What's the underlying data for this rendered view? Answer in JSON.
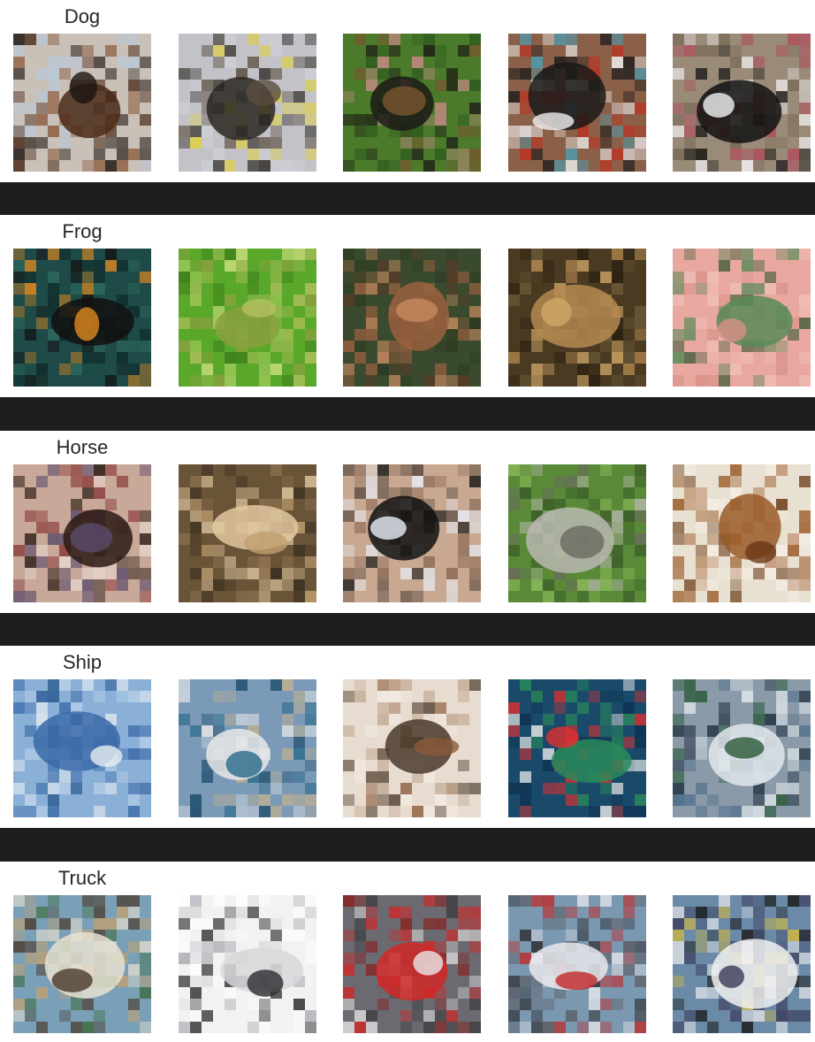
{
  "rows": [
    {
      "label": "Dog",
      "tiles": [
        {
          "name": "dog-1-rottweiler-closeup",
          "bg": "#c9c0b8",
          "colors": [
            "#4a2a18",
            "#1c1410",
            "#8a5a3a",
            "#b8c8d8"
          ]
        },
        {
          "name": "dog-2-dark-dog-standing",
          "bg": "#c2c2c8",
          "colors": [
            "#2a2620",
            "#5a4e40",
            "#d0d0d8",
            "#e0d040"
          ]
        },
        {
          "name": "dog-3-black-tan-on-grass",
          "bg": "#4a7a2a",
          "colors": [
            "#1c1a16",
            "#7a5630",
            "#2e5a1e",
            "#c88a88"
          ]
        },
        {
          "name": "dog-4-puppy-with-toy",
          "bg": "#8a6048",
          "colors": [
            "#1a1a1a",
            "#f0f0f0",
            "#4aa0b8",
            "#c03020"
          ]
        },
        {
          "name": "dog-5-black-white-on-ground",
          "bg": "#9a8a78",
          "colors": [
            "#121212",
            "#f2f2f2",
            "#7a6a58",
            "#b04a5a"
          ]
        }
      ]
    },
    {
      "label": "Frog",
      "tiles": [
        {
          "name": "frog-1-orange-spotted-on-leaf",
          "bg": "#1e4a48",
          "colors": [
            "#121010",
            "#e08a20",
            "#2e6a5e",
            "#0e2a28"
          ]
        },
        {
          "name": "frog-2-green-frog-on-leaf",
          "bg": "#5aa82a",
          "colors": [
            "#8aa040",
            "#b4c060",
            "#3a7a1a",
            "#d0e080"
          ]
        },
        {
          "name": "frog-3-brown-toad-in-grass",
          "bg": "#3a4a2e",
          "colors": [
            "#9a6040",
            "#c88a60",
            "#5a3a28",
            "#2a3a20"
          ]
        },
        {
          "name": "frog-4-toad-on-soil",
          "bg": "#4a3a22",
          "colors": [
            "#b48a50",
            "#d0a868",
            "#2a2010",
            "#6a5a38"
          ]
        },
        {
          "name": "frog-5-frog-in-hand",
          "bg": "#e8a8a0",
          "colors": [
            "#5a8a58",
            "#d89088",
            "#f0c0b8",
            "#3a5a38"
          ]
        }
      ]
    },
    {
      "label": "Horse",
      "tiles": [
        {
          "name": "horse-1-show-ring-crowd",
          "bg": "#c8a898",
          "colors": [
            "#2a1a14",
            "#5a4a6a",
            "#e8d8d0",
            "#8a3a3a"
          ]
        },
        {
          "name": "horse-2-palomino-field",
          "bg": "#6a5438",
          "colors": [
            "#e0c8a0",
            "#c0a070",
            "#3a2e20",
            "#8a7050"
          ]
        },
        {
          "name": "horse-3-black-horse-desert",
          "bg": "#c8a890",
          "colors": [
            "#121212",
            "#e8eef8",
            "#8a6a58",
            "#5a4a40"
          ]
        },
        {
          "name": "horse-4-grey-horse-trotting",
          "bg": "#5a8a38",
          "colors": [
            "#b8b8b0",
            "#6a6a60",
            "#8ab858",
            "#3a5a28"
          ]
        },
        {
          "name": "horse-5-chestnut-horse",
          "bg": "#e8e0d0",
          "colors": [
            "#9a5a28",
            "#6a3a18",
            "#f4eee4",
            "#c09070"
          ]
        }
      ]
    },
    {
      "label": "Ship",
      "tiles": [
        {
          "name": "ship-1-distant-ship-sea",
          "bg": "#8ab0d8",
          "colors": [
            "#3a6aa8",
            "#e8eef0",
            "#2a5a90",
            "#b8d0e8"
          ]
        },
        {
          "name": "ship-2-white-yacht-harbor",
          "bg": "#7a9ab8",
          "colors": [
            "#e8e8e8",
            "#2a6a8a",
            "#c0b090",
            "#1a4a6a"
          ]
        },
        {
          "name": "ship-3-cargo-ship",
          "bg": "#e8dcd0",
          "colors": [
            "#4a3a2a",
            "#8a5a3a",
            "#f4ece4",
            "#c0a890"
          ]
        },
        {
          "name": "ship-4-green-red-tanker",
          "bg": "#1a4a6a",
          "colors": [
            "#2a8a5a",
            "#e03030",
            "#f0f0f0",
            "#0e3050"
          ]
        },
        {
          "name": "ship-5-ferry-port",
          "bg": "#8a9aa8",
          "colors": [
            "#e0e8ec",
            "#2a5a3a",
            "#4a6a88",
            "#1a2a3a"
          ]
        }
      ]
    },
    {
      "label": "Truck",
      "tiles": [
        {
          "name": "truck-1-moving-truck-ramp",
          "bg": "#7aa0b8",
          "colors": [
            "#e8e0d0",
            "#4a3a2a",
            "#c0a070",
            "#3a6a3a"
          ]
        },
        {
          "name": "truck-2-white-truck",
          "bg": "#f2f2f2",
          "colors": [
            "#d8d8dc",
            "#2a2a2e",
            "#a8a8b0",
            "#ffffff"
          ]
        },
        {
          "name": "truck-3-red-fire-truck",
          "bg": "#6a6a70",
          "colors": [
            "#d02828",
            "#e8e8e8",
            "#3a3a3e",
            "#8a2020"
          ]
        },
        {
          "name": "truck-4-red-white-cab",
          "bg": "#7a98b0",
          "colors": [
            "#e8e8ec",
            "#c02828",
            "#2a2a2e",
            "#5a5a60"
          ]
        },
        {
          "name": "truck-5-dump-truck-road",
          "bg": "#6a8aa8",
          "colors": [
            "#f0f0f0",
            "#3a3a5a",
            "#1a1a1a",
            "#d0b840"
          ]
        }
      ]
    }
  ]
}
